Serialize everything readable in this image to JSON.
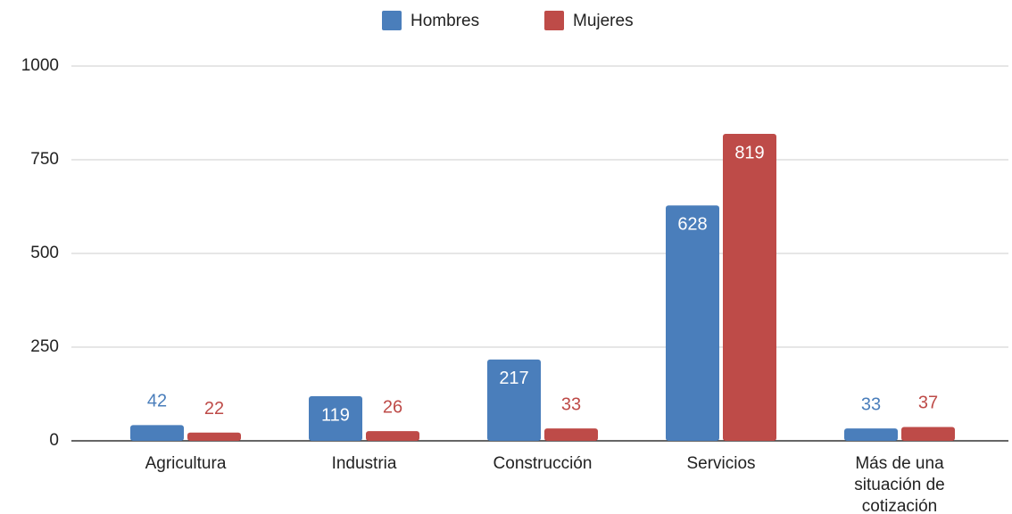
{
  "chart_data": {
    "type": "bar",
    "categories": [
      "Agricultura",
      "Industria",
      "Construcción",
      "Servicios",
      "Más de una situación de cotización"
    ],
    "series": [
      {
        "name": "Hombres",
        "color": "#4a7ebb",
        "values": [
          42,
          119,
          217,
          628,
          33
        ]
      },
      {
        "name": "Mujeres",
        "color": "#be4b48",
        "values": [
          22,
          26,
          33,
          819,
          37
        ]
      }
    ],
    "ylim": [
      0,
      1000
    ],
    "yticks": [
      0,
      250,
      500,
      750,
      1000
    ],
    "grid": true,
    "legend": "top"
  }
}
